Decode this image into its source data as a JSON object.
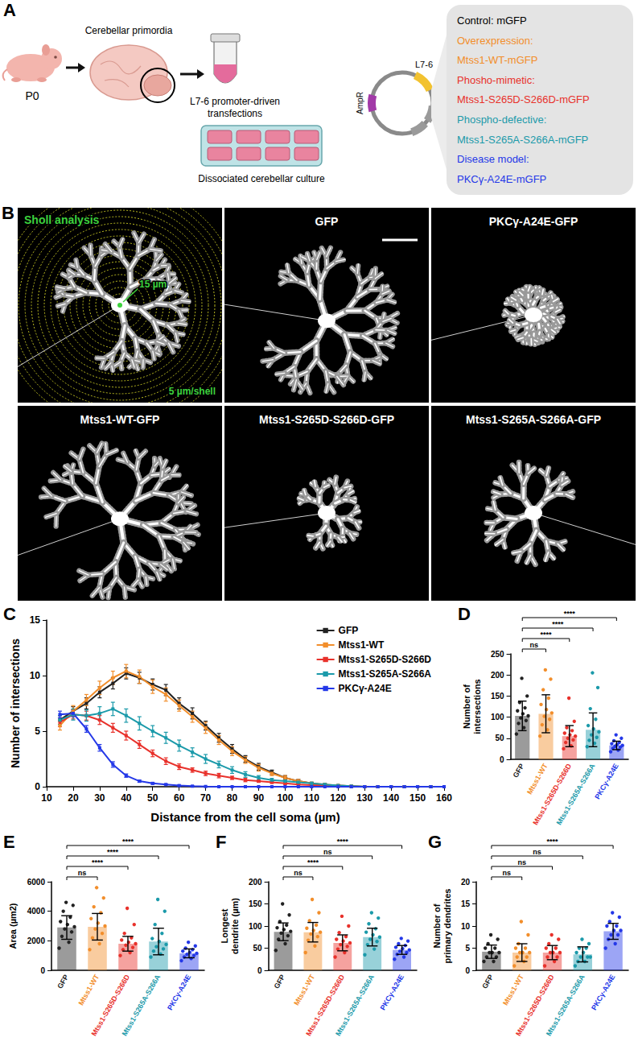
{
  "panel_a": {
    "letter": "A",
    "age": "P0",
    "tissue": "Cerebellar primordia",
    "transfection": "L7-6 promoter-driven transfections",
    "culture": "Dissociated cerebellar culture",
    "plasmid": {
      "promoter": "L7-6",
      "resistance": "AmpR"
    },
    "constructs": [
      {
        "text": "Control: mGFP",
        "color": "#000000"
      },
      {
        "text": "Overexpression:",
        "color": "#f28e2b"
      },
      {
        "text": "Mtss1-WT-mGFP",
        "color": "#f28e2b"
      },
      {
        "text": "Phosho-mimetic:",
        "color": "#e8312b"
      },
      {
        "text": "Mtss1-S265D-S266D-mGFP",
        "color": "#e8312b"
      },
      {
        "text": "Phospho-defective:",
        "color": "#1b9aaa"
      },
      {
        "text": "Mtss1-S265A-S266A-mGFP",
        "color": "#1b9aaa"
      },
      {
        "text": "Disease model:",
        "color": "#2438e8"
      },
      {
        "text": "PKCγ-A24E-mGFP",
        "color": "#2438e8"
      }
    ]
  },
  "panel_b": {
    "letter": "B",
    "images": [
      {
        "label": "Sholl analysis",
        "annotations": [
          "15 µm",
          "5 µm/shell"
        ]
      },
      {
        "label": "GFP"
      },
      {
        "label": "PKCγ-A24E-GFP"
      },
      {
        "label": "Mtss1-WT-GFP"
      },
      {
        "label": "Mtss1-S265D-S266D-GFP"
      },
      {
        "label": "Mtss1-S265A-S266A-GFP"
      }
    ]
  },
  "chart_data": [
    {
      "panel": "C",
      "type": "line",
      "x_label": "Distance from the cell soma (µm)",
      "y_label": "Number of intersections",
      "x": [
        15,
        20,
        25,
        30,
        35,
        40,
        45,
        50,
        55,
        60,
        65,
        70,
        75,
        80,
        85,
        90,
        95,
        100,
        105,
        110,
        115,
        120,
        125,
        130,
        135,
        140,
        145,
        150,
        155,
        160
      ],
      "xlim": [
        10,
        160
      ],
      "xticks": [
        10,
        20,
        30,
        40,
        50,
        60,
        70,
        80,
        90,
        100,
        110,
        120,
        130,
        140,
        150,
        160
      ],
      "ylim": [
        0,
        15
      ],
      "yticks": [
        0,
        5,
        10,
        15
      ],
      "grid": false,
      "legend": "upper right",
      "marker": "square",
      "series": [
        {
          "name": "GFP",
          "color": "#222222",
          "values": [
            6.0,
            6.8,
            7.5,
            8.5,
            9.3,
            10.2,
            9.8,
            9.2,
            8.7,
            7.5,
            6.6,
            5.5,
            4.4,
            3.4,
            2.5,
            1.8,
            1.3,
            0.8,
            0.5,
            0.3,
            0.15,
            0.1,
            0.05,
            0,
            0,
            0,
            0,
            0,
            0,
            0
          ],
          "errors": [
            0.4,
            0.4,
            0.5,
            0.5,
            0.5,
            0.5,
            0.5,
            0.5,
            0.5,
            0.5,
            0.5,
            0.4,
            0.4,
            0.4,
            0.3,
            0.3,
            0.2,
            0.2,
            0.15,
            0.1,
            0.1,
            0.05,
            0.05,
            0,
            0,
            0,
            0,
            0,
            0,
            0
          ]
        },
        {
          "name": "Mtss1-WT",
          "color": "#f28e2b",
          "values": [
            5.5,
            6.8,
            7.8,
            8.9,
            9.8,
            10.4,
            9.9,
            9.0,
            8.3,
            7.3,
            6.3,
            5.3,
            4.2,
            3.2,
            2.4,
            1.7,
            1.2,
            0.8,
            0.5,
            0.3,
            0.2,
            0.1,
            0.05,
            0,
            0,
            0,
            0,
            0,
            0,
            0
          ],
          "errors": [
            0.4,
            0.5,
            0.5,
            0.6,
            0.6,
            0.6,
            0.6,
            0.6,
            0.6,
            0.5,
            0.5,
            0.5,
            0.4,
            0.4,
            0.3,
            0.3,
            0.2,
            0.2,
            0.15,
            0.1,
            0.1,
            0.05,
            0.05,
            0,
            0,
            0,
            0,
            0,
            0,
            0
          ]
        },
        {
          "name": "Mtss1-S265D-S266D",
          "color": "#e8312b",
          "values": [
            5.8,
            6.5,
            6.4,
            6.0,
            5.3,
            4.6,
            3.8,
            3.0,
            2.3,
            1.8,
            1.5,
            1.2,
            1.0,
            0.8,
            0.6,
            0.5,
            0.4,
            0.3,
            0.2,
            0.15,
            0.1,
            0.05,
            0,
            0,
            0,
            0,
            0,
            0,
            0,
            0
          ],
          "errors": [
            0.4,
            0.4,
            0.4,
            0.4,
            0.4,
            0.4,
            0.35,
            0.3,
            0.3,
            0.25,
            0.2,
            0.2,
            0.2,
            0.15,
            0.15,
            0.1,
            0.1,
            0.1,
            0.05,
            0.05,
            0.05,
            0.05,
            0,
            0,
            0,
            0,
            0,
            0,
            0,
            0
          ]
        },
        {
          "name": "Mtss1-S265A-S266A",
          "color": "#1b9aaa",
          "values": [
            6.0,
            6.5,
            6.4,
            6.6,
            7.0,
            6.4,
            5.7,
            5.0,
            4.4,
            3.7,
            3.1,
            2.5,
            2.0,
            1.5,
            1.1,
            0.8,
            0.6,
            0.5,
            0.4,
            0.3,
            0.2,
            0.1,
            0.05,
            0,
            0,
            0,
            0,
            0,
            0,
            0
          ],
          "errors": [
            0.4,
            0.5,
            0.5,
            0.6,
            0.6,
            0.6,
            0.6,
            0.5,
            0.5,
            0.5,
            0.4,
            0.4,
            0.3,
            0.3,
            0.25,
            0.2,
            0.15,
            0.15,
            0.1,
            0.1,
            0.1,
            0.05,
            0.05,
            0,
            0,
            0,
            0,
            0,
            0,
            0
          ]
        },
        {
          "name": "PKCγ-A24E",
          "color": "#2438e8",
          "values": [
            6.5,
            6.6,
            5.2,
            3.5,
            2.0,
            1.0,
            0.5,
            0.3,
            0.2,
            0.1,
            0.05,
            0.02,
            0,
            0,
            0,
            0,
            0,
            0,
            0,
            0,
            0,
            0,
            0,
            0,
            0,
            0,
            0,
            0,
            0,
            0
          ],
          "errors": [
            0.3,
            0.3,
            0.3,
            0.3,
            0.25,
            0.15,
            0.1,
            0.08,
            0.05,
            0.04,
            0.03,
            0.02,
            0,
            0,
            0,
            0,
            0,
            0,
            0,
            0,
            0,
            0,
            0,
            0,
            0,
            0,
            0,
            0,
            0,
            0
          ]
        }
      ]
    },
    {
      "panel": "D",
      "type": "bar",
      "y_label": "Number of intersections",
      "categories": [
        "GFP",
        "Mtss1-WT",
        "Mtss1-S265D-S266D",
        "Mtss1-S265A-S266A",
        "PKCγ-A24E"
      ],
      "colors": [
        "#222222",
        "#f28e2b",
        "#e8312b",
        "#1b9aaa",
        "#2438e8"
      ],
      "values": [
        103,
        108,
        55,
        70,
        33
      ],
      "errors": [
        35,
        45,
        25,
        40,
        10
      ],
      "points": [
        [
          60,
          75,
          85,
          92,
          98,
          103,
          108,
          115,
          122,
          135,
          150,
          192
        ],
        [
          55,
          70,
          82,
          95,
          102,
          110,
          118,
          130,
          145,
          165,
          190,
          212
        ],
        [
          25,
          32,
          40,
          46,
          50,
          55,
          58,
          62,
          68,
          75,
          90,
          145
        ],
        [
          30,
          38,
          45,
          52,
          58,
          65,
          72,
          80,
          95,
          120,
          170,
          205
        ],
        [
          18,
          22,
          26,
          29,
          31,
          33,
          35,
          37,
          40,
          44,
          50,
          58
        ]
      ],
      "ylim": [
        0,
        250
      ],
      "yticks": [
        0,
        50,
        100,
        150,
        200,
        250
      ],
      "grid": false,
      "comparisons": [
        {
          "from": "GFP",
          "to": "Mtss1-WT",
          "label": "ns"
        },
        {
          "from": "GFP",
          "to": "Mtss1-S265D-S266D",
          "label": "****"
        },
        {
          "from": "GFP",
          "to": "Mtss1-S265A-S266A",
          "label": "****"
        },
        {
          "from": "GFP",
          "to": "PKCγ-A24E",
          "label": "****"
        }
      ]
    },
    {
      "panel": "E",
      "type": "bar",
      "y_label": "Area (µm2)",
      "categories": [
        "GFP",
        "Mtss1-WT",
        "Mtss1-S265D-S266D",
        "Mtss1-S265A-S266A",
        "PKCγ-A24E"
      ],
      "colors": [
        "#222222",
        "#f28e2b",
        "#e8312b",
        "#1b9aaa",
        "#2438e8"
      ],
      "values": [
        2900,
        2950,
        1800,
        1950,
        1150
      ],
      "errors": [
        800,
        900,
        500,
        900,
        300
      ],
      "points": [
        [
          1500,
          1900,
          2300,
          2600,
          2800,
          2950,
          3100,
          3300,
          3600,
          4000,
          4400,
          4600
        ],
        [
          1400,
          1800,
          2200,
          2500,
          2800,
          3000,
          3200,
          3500,
          3900,
          4300,
          4900,
          5600
        ],
        [
          1000,
          1200,
          1400,
          1550,
          1700,
          1800,
          1900,
          2050,
          2200,
          2500,
          3100,
          4200
        ],
        [
          900,
          1100,
          1300,
          1450,
          1600,
          1750,
          1950,
          2150,
          2500,
          3100,
          4000,
          4800
        ],
        [
          650,
          800,
          900,
          1000,
          1080,
          1150,
          1220,
          1300,
          1400,
          1500,
          1650,
          1900
        ]
      ],
      "ylim": [
        0,
        6000
      ],
      "yticks": [
        0,
        2000,
        4000,
        6000
      ],
      "grid": false,
      "comparisons": [
        {
          "from": "GFP",
          "to": "Mtss1-WT",
          "label": "ns"
        },
        {
          "from": "GFP",
          "to": "Mtss1-S265D-S266D",
          "label": "****"
        },
        {
          "from": "GFP",
          "to": "Mtss1-S265A-S266A",
          "label": "****"
        },
        {
          "from": "GFP",
          "to": "PKCγ-A24E",
          "label": "****"
        }
      ]
    },
    {
      "panel": "F",
      "type": "bar",
      "y_label": "Longest dendrite (µm)",
      "categories": [
        "GFP",
        "Mtss1-WT",
        "Mtss1-S265D-S266D",
        "Mtss1-S265A-S266A",
        "PKCγ-A24E"
      ],
      "colors": [
        "#222222",
        "#f28e2b",
        "#e8312b",
        "#1b9aaa",
        "#2438e8"
      ],
      "values": [
        87,
        86,
        62,
        75,
        46
      ],
      "errors": [
        20,
        22,
        18,
        20,
        10
      ],
      "points": [
        [
          45,
          60,
          70,
          78,
          84,
          88,
          92,
          96,
          102,
          110,
          125,
          150
        ],
        [
          40,
          55,
          68,
          76,
          82,
          86,
          90,
          95,
          102,
          112,
          130,
          160
        ],
        [
          30,
          40,
          48,
          54,
          58,
          62,
          66,
          70,
          76,
          85,
          100,
          122
        ],
        [
          35,
          48,
          58,
          65,
          70,
          75,
          80,
          86,
          94,
          105,
          118,
          130
        ],
        [
          25,
          30,
          36,
          40,
          43,
          46,
          49,
          52,
          56,
          60,
          66,
          72
        ]
      ],
      "ylim": [
        0,
        200
      ],
      "yticks": [
        0,
        50,
        100,
        150,
        200
      ],
      "grid": false,
      "comparisons": [
        {
          "from": "GFP",
          "to": "Mtss1-WT",
          "label": "ns"
        },
        {
          "from": "GFP",
          "to": "Mtss1-S265D-S266D",
          "label": "****"
        },
        {
          "from": "GFP",
          "to": "Mtss1-S265A-S266A",
          "label": "ns"
        },
        {
          "from": "GFP",
          "to": "PKCγ-A24E",
          "label": "****"
        }
      ]
    },
    {
      "panel": "G",
      "type": "bar",
      "y_label": "Number of primary dendrites",
      "categories": [
        "GFP",
        "Mtss1-WT",
        "Mtss1-S265D-S266D",
        "Mtss1-S265A-S266A",
        "PKCγ-A24E"
      ],
      "colors": [
        "#222222",
        "#f28e2b",
        "#e8312b",
        "#1b9aaa",
        "#2438e8"
      ],
      "values": [
        4.2,
        4.0,
        4.0,
        3.6,
        8.8
      ],
      "errors": [
        1.5,
        2.0,
        1.6,
        1.7,
        1.8
      ],
      "points": [
        [
          2,
          2,
          3,
          3,
          4,
          4,
          4,
          5,
          5,
          6,
          7,
          8
        ],
        [
          1,
          2,
          3,
          3,
          4,
          4,
          4,
          5,
          5,
          6,
          8,
          11
        ],
        [
          1,
          2,
          3,
          3,
          4,
          4,
          4,
          5,
          5,
          6,
          7,
          8
        ],
        [
          1,
          2,
          2,
          3,
          3,
          3,
          4,
          4,
          5,
          5,
          6,
          7
        ],
        [
          5,
          6,
          7,
          8,
          8,
          9,
          9,
          10,
          10,
          11,
          12,
          13
        ]
      ],
      "ylim": [
        0,
        20
      ],
      "yticks": [
        0,
        5,
        10,
        15,
        20
      ],
      "grid": false,
      "comparisons": [
        {
          "from": "GFP",
          "to": "Mtss1-WT",
          "label": "ns"
        },
        {
          "from": "GFP",
          "to": "Mtss1-S265D-S266D",
          "label": "ns"
        },
        {
          "from": "GFP",
          "to": "Mtss1-S265A-S266A",
          "label": "ns"
        },
        {
          "from": "GFP",
          "to": "PKCγ-A24E",
          "label": "****"
        }
      ]
    }
  ]
}
